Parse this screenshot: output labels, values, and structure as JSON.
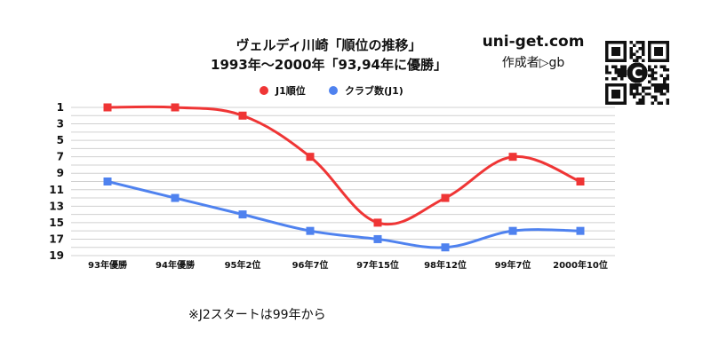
{
  "header": {
    "title_line1": "ヴェルディ川崎「順位の推移」",
    "title_line2": "1993年～2000年「93,94年に優勝」"
  },
  "brand": {
    "site": "uni-get.com",
    "author": "作成者▷gb",
    "qr_letter": "C"
  },
  "note": "※J2スタートは99年から",
  "colors": {
    "rank": "#ef3535",
    "clubs": "#4f82ef",
    "grid": "#d0d0d0"
  },
  "chart_data": {
    "type": "line",
    "title": "ヴェルディ川崎「順位の推移」",
    "subtitle": "1993年～2000年「93,94年に優勝」",
    "categories": [
      "93年優勝",
      "94年優勝",
      "95年2位",
      "96年7位",
      "97年15位",
      "98年12位",
      "99年7位",
      "2000年10位"
    ],
    "y_reversed": true,
    "ylim": [
      1,
      19
    ],
    "y_ticks": [
      1,
      3,
      5,
      7,
      9,
      11,
      13,
      15,
      17,
      19
    ],
    "grid": true,
    "legend_position": "top",
    "series": [
      {
        "name": "J1順位",
        "color": "#ef3535",
        "values": [
          1,
          1,
          2,
          7,
          15,
          12,
          7,
          10
        ]
      },
      {
        "name": "クラブ数(J1)",
        "color": "#4f82ef",
        "values": [
          10,
          12,
          14,
          16,
          17,
          18,
          16,
          16
        ]
      }
    ]
  }
}
